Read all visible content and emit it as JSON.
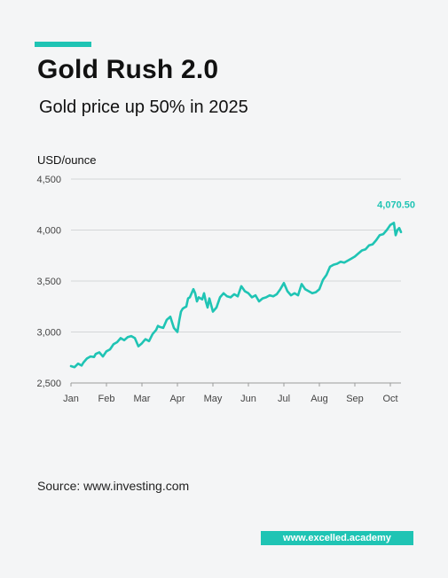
{
  "header": {
    "title": "Gold Rush 2.0",
    "subtitle": "Gold price up 50% in 2025",
    "accent_color": "#1fc4b4"
  },
  "footer": {
    "source": "Source: www.investing.com",
    "brand": "www.excelled.academy"
  },
  "chart_data": {
    "type": "line",
    "title": "",
    "ylabel": "USD/ounce",
    "ylim": [
      2500,
      4500
    ],
    "yticks": [
      2500,
      3000,
      3500,
      4000,
      4500
    ],
    "ytick_labels": [
      "2,500",
      "3,000",
      "3,500",
      "4,000",
      "4,500"
    ],
    "xlim": [
      0,
      9.3
    ],
    "xticks": [
      0,
      1,
      2,
      3,
      4,
      5,
      6,
      7,
      8,
      9
    ],
    "xtick_labels": [
      "Jan",
      "Feb",
      "Mar",
      "Apr",
      "May",
      "Jun",
      "Jul",
      "Aug",
      "Sep",
      "Oct"
    ],
    "grid": "horizontal",
    "line_color": "#1fc4b4",
    "annotation": {
      "label": "4,070.50",
      "x": 9.25,
      "y": 4070.5
    },
    "series": [
      {
        "x": [
          0,
          0.1,
          0.2,
          0.3,
          0.35,
          0.45,
          0.55,
          0.65,
          0.7,
          0.8,
          0.9,
          1.0,
          1.1,
          1.2,
          1.3,
          1.4,
          1.5,
          1.6,
          1.7,
          1.8,
          1.9,
          2.0,
          2.05,
          2.1,
          2.2,
          2.3,
          2.4,
          2.45,
          2.5,
          2.6,
          2.7,
          2.8,
          2.9,
          3.0,
          3.05,
          3.1,
          3.15,
          3.2,
          3.25,
          3.3,
          3.35,
          3.45,
          3.5,
          3.55,
          3.6,
          3.7,
          3.75,
          3.8,
          3.85,
          3.9,
          4.0,
          4.1,
          4.2,
          4.3,
          4.4,
          4.5,
          4.6,
          4.7,
          4.8,
          4.9,
          5.0,
          5.1,
          5.2,
          5.3,
          5.4,
          5.5,
          5.6,
          5.7,
          5.8,
          5.9,
          6.0,
          6.1,
          6.2,
          6.3,
          6.4,
          6.5,
          6.6,
          6.7,
          6.8,
          6.9,
          7.0,
          7.1,
          7.2,
          7.3,
          7.4,
          7.5,
          7.6,
          7.7,
          7.8,
          7.9,
          8.0,
          8.1,
          8.2,
          8.3,
          8.4,
          8.5,
          8.6,
          8.7,
          8.8,
          8.9,
          9.0,
          9.1,
          9.15,
          9.2,
          9.25,
          9.3
        ],
        "y": [
          2665,
          2655,
          2690,
          2670,
          2700,
          2740,
          2760,
          2755,
          2785,
          2800,
          2760,
          2810,
          2830,
          2880,
          2900,
          2940,
          2920,
          2950,
          2960,
          2940,
          2860,
          2890,
          2910,
          2930,
          2910,
          2980,
          3020,
          3060,
          3050,
          3040,
          3120,
          3150,
          3040,
          3000,
          3110,
          3200,
          3230,
          3240,
          3250,
          3330,
          3340,
          3420,
          3380,
          3300,
          3340,
          3320,
          3380,
          3300,
          3240,
          3330,
          3200,
          3240,
          3340,
          3380,
          3350,
          3340,
          3370,
          3350,
          3450,
          3400,
          3380,
          3340,
          3360,
          3300,
          3330,
          3340,
          3360,
          3350,
          3370,
          3420,
          3480,
          3400,
          3360,
          3380,
          3360,
          3470,
          3420,
          3400,
          3380,
          3390,
          3420,
          3510,
          3560,
          3640,
          3660,
          3670,
          3690,
          3680,
          3700,
          3720,
          3740,
          3770,
          3800,
          3810,
          3850,
          3860,
          3900,
          3950,
          3960,
          4000,
          4050,
          4070.5,
          3950,
          4000,
          4020,
          3980
        ]
      }
    ]
  }
}
